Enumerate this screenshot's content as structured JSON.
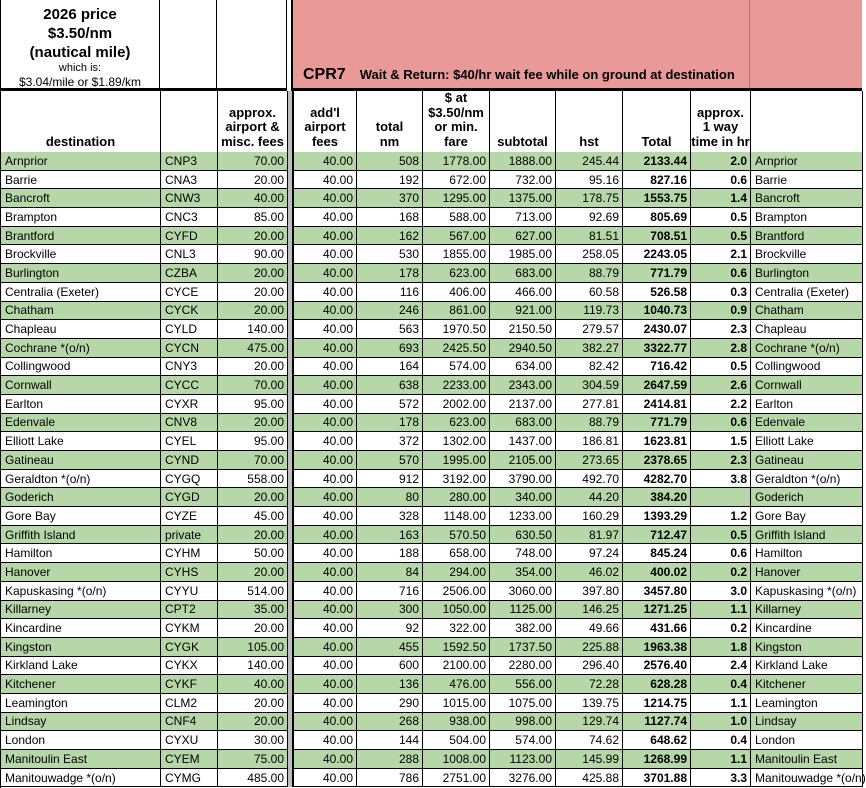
{
  "colors": {
    "row_green": "#b6d7a8",
    "banner_pink": "#ea9999",
    "divider_grey": "#bdbdbd"
  },
  "price_box": {
    "line1": "2026 price",
    "line2": "$3.50/nm",
    "line3": "(nautical mile)",
    "line4": "which is:",
    "line5": "$3.04/mile or $1.89/km"
  },
  "banner": {
    "code": "CPR7",
    "note": "Wait & Return: $40/hr wait fee while on ground at destination"
  },
  "table": {
    "columns": [
      {
        "key": "dest",
        "field": "dest",
        "label": "destination",
        "align": "l"
      },
      {
        "key": "code",
        "field": "code",
        "label": "",
        "align": "l"
      },
      {
        "key": "fees",
        "field": "fees",
        "label": "approx.\nairport &\nmisc. fees",
        "align": "r"
      },
      {
        "key": "divider",
        "field": null,
        "label": "",
        "align": ""
      },
      {
        "key": "addl",
        "field": "addl",
        "label": "add'l\nairport\nfees",
        "align": "r"
      },
      {
        "key": "nm",
        "field": "nm",
        "label": "total\nnm",
        "align": "r"
      },
      {
        "key": "fare",
        "field": "fare",
        "label": "$ at\n$3.50/nm\nor min. fare",
        "align": "r"
      },
      {
        "key": "subtotal",
        "field": "subtotal",
        "label": "subtotal",
        "align": "r"
      },
      {
        "key": "hst",
        "field": "hst",
        "label": "hst",
        "align": "r"
      },
      {
        "key": "total",
        "field": "total",
        "label": "Total",
        "align": "rb"
      },
      {
        "key": "time",
        "field": "time",
        "label": "approx.\n1 way\ntime in hr",
        "align": "rb"
      },
      {
        "key": "dest2",
        "field": "dest",
        "label": "",
        "align": "l"
      }
    ],
    "rows": [
      {
        "dest": "Arnprior",
        "code": "CNP3",
        "fees": "70.00",
        "addl": "40.00",
        "nm": "508",
        "fare": "1778.00",
        "subtotal": "1888.00",
        "hst": "245.44",
        "total": "2133.44",
        "time": "2.0"
      },
      {
        "dest": "Barrie",
        "code": "CNA3",
        "fees": "20.00",
        "addl": "40.00",
        "nm": "192",
        "fare": "672.00",
        "subtotal": "732.00",
        "hst": "95.16",
        "total": "827.16",
        "time": "0.6"
      },
      {
        "dest": "Bancroft",
        "code": "CNW3",
        "fees": "40.00",
        "addl": "40.00",
        "nm": "370",
        "fare": "1295.00",
        "subtotal": "1375.00",
        "hst": "178.75",
        "total": "1553.75",
        "time": "1.4"
      },
      {
        "dest": "Brampton",
        "code": "CNC3",
        "fees": "85.00",
        "addl": "40.00",
        "nm": "168",
        "fare": "588.00",
        "subtotal": "713.00",
        "hst": "92.69",
        "total": "805.69",
        "time": "0.5"
      },
      {
        "dest": "Brantford",
        "code": "CYFD",
        "fees": "20.00",
        "addl": "40.00",
        "nm": "162",
        "fare": "567.00",
        "subtotal": "627.00",
        "hst": "81.51",
        "total": "708.51",
        "time": "0.5"
      },
      {
        "dest": "Brockville",
        "code": "CNL3",
        "fees": "90.00",
        "addl": "40.00",
        "nm": "530",
        "fare": "1855.00",
        "subtotal": "1985.00",
        "hst": "258.05",
        "total": "2243.05",
        "time": "2.1"
      },
      {
        "dest": "Burlington",
        "code": "CZBA",
        "fees": "20.00",
        "addl": "40.00",
        "nm": "178",
        "fare": "623.00",
        "subtotal": "683.00",
        "hst": "88.79",
        "total": "771.79",
        "time": "0.6"
      },
      {
        "dest": "Centralia (Exeter)",
        "code": "CYCE",
        "fees": "20.00",
        "addl": "40.00",
        "nm": "116",
        "fare": "406.00",
        "subtotal": "466.00",
        "hst": "60.58",
        "total": "526.58",
        "time": "0.3"
      },
      {
        "dest": "Chatham",
        "code": "CYCK",
        "fees": "20.00",
        "addl": "40.00",
        "nm": "246",
        "fare": "861.00",
        "subtotal": "921.00",
        "hst": "119.73",
        "total": "1040.73",
        "time": "0.9"
      },
      {
        "dest": "Chapleau",
        "code": "CYLD",
        "fees": "140.00",
        "addl": "40.00",
        "nm": "563",
        "fare": "1970.50",
        "subtotal": "2150.50",
        "hst": "279.57",
        "total": "2430.07",
        "time": "2.3"
      },
      {
        "dest": "Cochrane *(o/n)",
        "code": "CYCN",
        "fees": "475.00",
        "addl": "40.00",
        "nm": "693",
        "fare": "2425.50",
        "subtotal": "2940.50",
        "hst": "382.27",
        "total": "3322.77",
        "time": "2.8"
      },
      {
        "dest": "Collingwood",
        "code": "CNY3",
        "fees": "20.00",
        "addl": "40.00",
        "nm": "164",
        "fare": "574.00",
        "subtotal": "634.00",
        "hst": "82.42",
        "total": "716.42",
        "time": "0.5"
      },
      {
        "dest": "Cornwall",
        "code": "CYCC",
        "fees": "70.00",
        "addl": "40.00",
        "nm": "638",
        "fare": "2233.00",
        "subtotal": "2343.00",
        "hst": "304.59",
        "total": "2647.59",
        "time": "2.6"
      },
      {
        "dest": "Earlton",
        "code": "CYXR",
        "fees": "95.00",
        "addl": "40.00",
        "nm": "572",
        "fare": "2002.00",
        "subtotal": "2137.00",
        "hst": "277.81",
        "total": "2414.81",
        "time": "2.2"
      },
      {
        "dest": "Edenvale",
        "code": "CNV8",
        "fees": "20.00",
        "addl": "40.00",
        "nm": "178",
        "fare": "623.00",
        "subtotal": "683.00",
        "hst": "88.79",
        "total": "771.79",
        "time": "0.6"
      },
      {
        "dest": "Elliott Lake",
        "code": "CYEL",
        "fees": "95.00",
        "addl": "40.00",
        "nm": "372",
        "fare": "1302.00",
        "subtotal": "1437.00",
        "hst": "186.81",
        "total": "1623.81",
        "time": "1.5"
      },
      {
        "dest": "Gatineau",
        "code": "CYND",
        "fees": "70.00",
        "addl": "40.00",
        "nm": "570",
        "fare": "1995.00",
        "subtotal": "2105.00",
        "hst": "273.65",
        "total": "2378.65",
        "time": "2.3"
      },
      {
        "dest": "Geraldton *(o/n)",
        "code": "CYGQ",
        "fees": "558.00",
        "addl": "40.00",
        "nm": "912",
        "fare": "3192.00",
        "subtotal": "3790.00",
        "hst": "492.70",
        "total": "4282.70",
        "time": "3.8"
      },
      {
        "dest": "Goderich",
        "code": "CYGD",
        "fees": "20.00",
        "addl": "40.00",
        "nm": "80",
        "fare": "280.00",
        "subtotal": "340.00",
        "hst": "44.20",
        "total": "384.20",
        "time": ""
      },
      {
        "dest": "Gore Bay",
        "code": "CYZE",
        "fees": "45.00",
        "addl": "40.00",
        "nm": "328",
        "fare": "1148.00",
        "subtotal": "1233.00",
        "hst": "160.29",
        "total": "1393.29",
        "time": "1.2"
      },
      {
        "dest": "Griffith Island",
        "code": "private",
        "fees": "20.00",
        "addl": "40.00",
        "nm": "163",
        "fare": "570.50",
        "subtotal": "630.50",
        "hst": "81.97",
        "total": "712.47",
        "time": "0.5"
      },
      {
        "dest": "Hamilton",
        "code": "CYHM",
        "fees": "50.00",
        "addl": "40.00",
        "nm": "188",
        "fare": "658.00",
        "subtotal": "748.00",
        "hst": "97.24",
        "total": "845.24",
        "time": "0.6"
      },
      {
        "dest": "Hanover",
        "code": "CYHS",
        "fees": "20.00",
        "addl": "40.00",
        "nm": "84",
        "fare": "294.00",
        "subtotal": "354.00",
        "hst": "46.02",
        "total": "400.02",
        "time": "0.2"
      },
      {
        "dest": "Kapuskasing *(o/n)",
        "code": "CYYU",
        "fees": "514.00",
        "addl": "40.00",
        "nm": "716",
        "fare": "2506.00",
        "subtotal": "3060.00",
        "hst": "397.80",
        "total": "3457.80",
        "time": "3.0"
      },
      {
        "dest": "Killarney",
        "code": "CPT2",
        "fees": "35.00",
        "addl": "40.00",
        "nm": "300",
        "fare": "1050.00",
        "subtotal": "1125.00",
        "hst": "146.25",
        "total": "1271.25",
        "time": "1.1"
      },
      {
        "dest": "Kincardine",
        "code": "CYKM",
        "fees": "20.00",
        "addl": "40.00",
        "nm": "92",
        "fare": "322.00",
        "subtotal": "382.00",
        "hst": "49.66",
        "total": "431.66",
        "time": "0.2"
      },
      {
        "dest": "Kingston",
        "code": "CYGK",
        "fees": "105.00",
        "addl": "40.00",
        "nm": "455",
        "fare": "1592.50",
        "subtotal": "1737.50",
        "hst": "225.88",
        "total": "1963.38",
        "time": "1.8"
      },
      {
        "dest": "Kirkland Lake",
        "code": "CYKX",
        "fees": "140.00",
        "addl": "40.00",
        "nm": "600",
        "fare": "2100.00",
        "subtotal": "2280.00",
        "hst": "296.40",
        "total": "2576.40",
        "time": "2.4"
      },
      {
        "dest": "Kitchener",
        "code": "CYKF",
        "fees": "40.00",
        "addl": "40.00",
        "nm": "136",
        "fare": "476.00",
        "subtotal": "556.00",
        "hst": "72.28",
        "total": "628.28",
        "time": "0.4"
      },
      {
        "dest": "Leamington",
        "code": "CLM2",
        "fees": "20.00",
        "addl": "40.00",
        "nm": "290",
        "fare": "1015.00",
        "subtotal": "1075.00",
        "hst": "139.75",
        "total": "1214.75",
        "time": "1.1"
      },
      {
        "dest": "Lindsay",
        "code": "CNF4",
        "fees": "20.00",
        "addl": "40.00",
        "nm": "268",
        "fare": "938.00",
        "subtotal": "998.00",
        "hst": "129.74",
        "total": "1127.74",
        "time": "1.0"
      },
      {
        "dest": "London",
        "code": "CYXU",
        "fees": "30.00",
        "addl": "40.00",
        "nm": "144",
        "fare": "504.00",
        "subtotal": "574.00",
        "hst": "74.62",
        "total": "648.62",
        "time": "0.4"
      },
      {
        "dest": "Manitoulin East",
        "code": "CYEM",
        "fees": "75.00",
        "addl": "40.00",
        "nm": "288",
        "fare": "1008.00",
        "subtotal": "1123.00",
        "hst": "145.99",
        "total": "1268.99",
        "time": "1.1"
      },
      {
        "dest": "Manitouwadge *(o/n)",
        "code": "CYMG",
        "fees": "485.00",
        "addl": "40.00",
        "nm": "786",
        "fare": "2751.00",
        "subtotal": "3276.00",
        "hst": "425.88",
        "total": "3701.88",
        "time": "3.3"
      }
    ]
  }
}
